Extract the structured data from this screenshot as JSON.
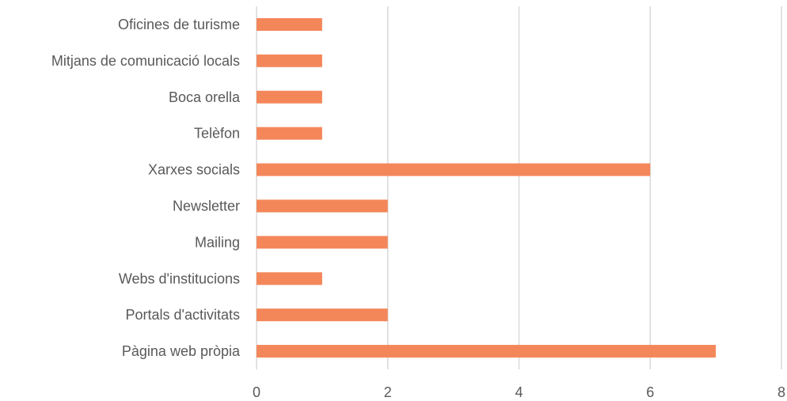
{
  "chart_data": {
    "type": "bar",
    "orientation": "horizontal",
    "categories": [
      "Pàgina web pròpia",
      "Portals d'activitats",
      "Webs d'institucions",
      "Mailing",
      "Newsletter",
      "Xarxes socials",
      "Telèfon",
      "Boca orella",
      "Mitjans de comunicació locals",
      "Oficines de turisme"
    ],
    "values": [
      7,
      2,
      1,
      2,
      2,
      6,
      1,
      1,
      1,
      1
    ],
    "title": "",
    "xlabel": "",
    "ylabel": "",
    "xlim": [
      0,
      8
    ],
    "x_ticks": [
      0,
      2,
      4,
      6,
      8
    ],
    "grid": "vertical",
    "legend": "none",
    "bar_color": "#f4875a",
    "grid_color": "#d9d9d9",
    "text_color": "#595959"
  }
}
